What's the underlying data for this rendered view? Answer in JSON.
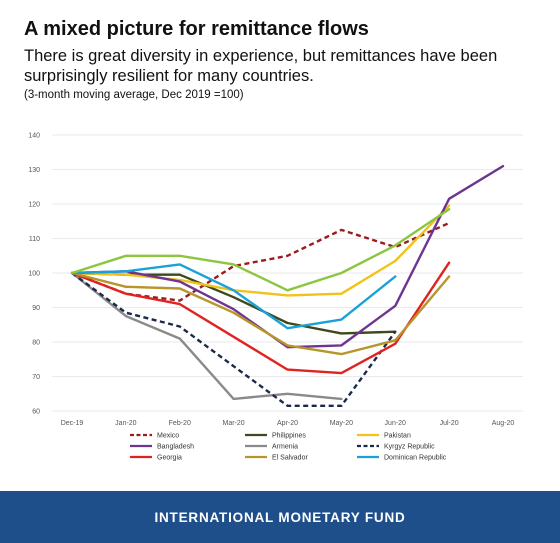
{
  "header": {
    "title": "A mixed picture for remittance flows",
    "subtitle": "There is great diversity in experience, but remittances have been surprisingly resilient for many countries.",
    "note": "(3-month moving average, Dec 2019 =100)"
  },
  "footer": {
    "label": "INTERNATIONAL MONETARY FUND",
    "color": "#1f4f8b"
  },
  "chart_data": {
    "type": "line",
    "title": "",
    "xlabel": "",
    "ylabel": "",
    "categories": [
      "Dec-19",
      "Jan-20",
      "Feb-20",
      "Mar-20",
      "Apr-20",
      "May-20",
      "Jun-20",
      "Jul-20",
      "Aug-20"
    ],
    "ylim": [
      60,
      140
    ],
    "yticks": [
      60,
      70,
      80,
      90,
      100,
      110,
      120,
      130,
      140
    ],
    "grid": true,
    "legend_position": "bottom",
    "series": [
      {
        "name": "Mexico",
        "color": "#9b1b1e",
        "dash": "dashed",
        "values": [
          100,
          94,
          92,
          102,
          105,
          112.5,
          107.5,
          114.5,
          null
        ]
      },
      {
        "name": "Philippines",
        "color": "#3c4a1e",
        "dash": "solid",
        "values": [
          100,
          99.5,
          99.5,
          93,
          85.5,
          82.5,
          83,
          null,
          null
        ]
      },
      {
        "name": "Pakistan",
        "color": "#f2c21b",
        "dash": "solid",
        "values": [
          100,
          99.5,
          98,
          95,
          93.5,
          94,
          103.5,
          119.5,
          null
        ]
      },
      {
        "name": "Bangladesh",
        "color": "#6e3590",
        "dash": "solid",
        "values": [
          100,
          100.5,
          97.5,
          89.5,
          78.5,
          79,
          90.5,
          121.5,
          131
        ]
      },
      {
        "name": "Armenia",
        "color": "#8a8a8a",
        "dash": "solid",
        "values": [
          100,
          87.5,
          81,
          63.5,
          65,
          63.5,
          null,
          null,
          null
        ]
      },
      {
        "name": "Kyrgyz Republic",
        "color": "#1b2a4a",
        "dash": "dashed",
        "values": [
          100,
          88.5,
          84.5,
          73,
          61.5,
          61.5,
          83,
          null,
          null
        ]
      },
      {
        "name": "Georgia",
        "color": "#e0231f",
        "dash": "solid",
        "values": [
          100,
          94,
          91,
          81.5,
          72,
          71,
          79.5,
          103,
          null
        ]
      },
      {
        "name": "El Salvador",
        "color": "#b8952a",
        "dash": "solid",
        "values": [
          100,
          96,
          95.5,
          88.5,
          79,
          76.5,
          80.5,
          99,
          null
        ]
      },
      {
        "name": "Dominican Republic",
        "color": "#1aa2d8",
        "dash": "solid",
        "values": [
          100,
          100.5,
          102.5,
          95,
          84,
          86.5,
          99,
          null,
          null
        ]
      },
      {
        "name": "",
        "color": "#8cc63f",
        "dash": "solid",
        "values": [
          100,
          105,
          105,
          102.5,
          95,
          100,
          108,
          118.5,
          null
        ]
      }
    ]
  }
}
